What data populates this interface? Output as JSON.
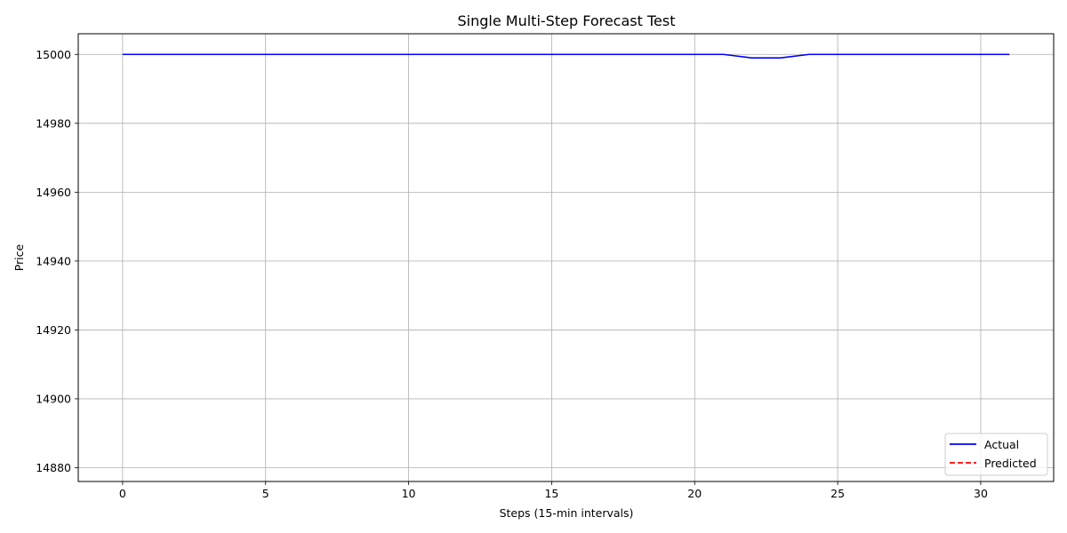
{
  "chart_data": {
    "type": "line",
    "title": "Single Multi-Step Forecast Test",
    "xlabel": "Steps (15-min intervals)",
    "ylabel": "Price",
    "xlim": [
      -1.55,
      32.55
    ],
    "ylim": [
      14876,
      15006
    ],
    "xticks": [
      0,
      5,
      10,
      15,
      20,
      25,
      30
    ],
    "yticks": [
      14880,
      14900,
      14920,
      14940,
      14960,
      14980,
      15000
    ],
    "grid": true,
    "legend_position": "lower-right",
    "series": [
      {
        "name": "Actual",
        "color": "#0000ff",
        "style": "solid",
        "x": [
          0,
          1,
          2,
          3,
          4,
          5,
          6,
          7,
          8,
          9,
          10,
          11,
          12,
          13,
          14,
          15,
          16,
          17,
          18,
          19,
          20,
          21,
          22,
          23,
          24,
          25,
          26,
          27,
          28,
          29,
          30,
          31
        ],
        "y": [
          15000,
          15000,
          15000,
          15000,
          15000,
          15000,
          15000,
          15000,
          15000,
          15000,
          15000,
          15000,
          15000,
          15000,
          15000,
          15000,
          15000,
          15000,
          15000,
          15000,
          15000,
          15000,
          14999,
          14999,
          15000,
          15000,
          15000,
          15000,
          15000,
          15000,
          15000,
          15000
        ]
      },
      {
        "name": "Predicted",
        "color": "#ff0000",
        "style": "dashed",
        "x": [],
        "y": []
      }
    ]
  }
}
